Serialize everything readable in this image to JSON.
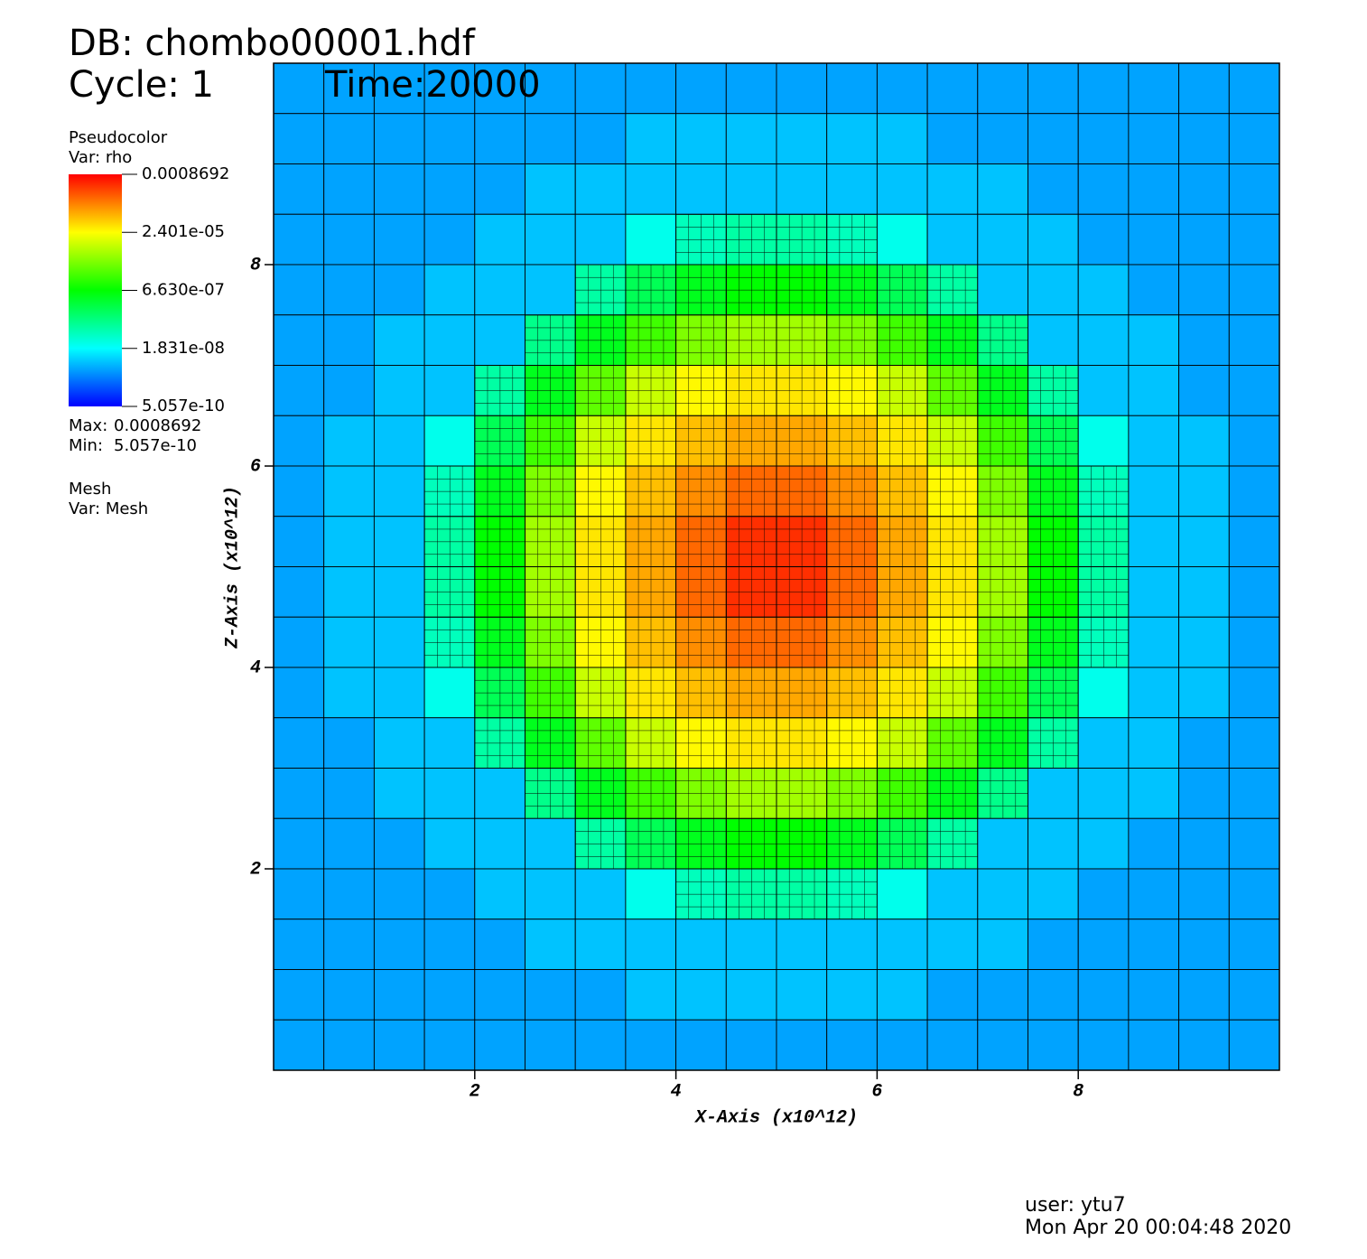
{
  "chart_data": {
    "type": "heatmap",
    "title": "DB: chombo00001.hdf",
    "cycle": "Cycle: 1",
    "time": "Time:20000",
    "plot_name": "Pseudocolor",
    "variable": "Var: rho",
    "colorbar": {
      "zlim": [
        5.057e-10,
        0.0008692
      ],
      "log": true,
      "colors": [
        "#0000ff",
        "#00ffff",
        "#00ff00",
        "#ffff00",
        "#ff0000"
      ],
      "ticks": [
        5.057e-10,
        {
          "value": 1.831e-08,
          "label": "1.831e-08"
        },
        {
          "value": 6.63e-07,
          "label": "6.630e-07"
        },
        {
          "value": 2.401e-05,
          "label": "2.401e-05"
        },
        0.0008692
      ]
    },
    "max_label": "Max:",
    "max": 0.0008692,
    "min_label": "Min:",
    "min": 5.057e-10,
    "mesh_name": "Mesh",
    "mesh_variable": "Var: Mesh",
    "x_label": "X-Axis (x10^12)",
    "y_label": "Z-Axis (x10^12)",
    "xlim": [
      0,
      10
    ],
    "ylim": [
      0,
      10
    ],
    "xticks": [
      2,
      4,
      6,
      8
    ],
    "yticks": [
      2,
      4,
      6,
      8
    ],
    "x": [
      0.25,
      0.75,
      1.25,
      1.75,
      2.25,
      2.75,
      3.25,
      3.75,
      4.25,
      4.75,
      5.25,
      5.75,
      6.25,
      6.75,
      7.25,
      7.75,
      8.25,
      8.75,
      9.25,
      9.75
    ],
    "y": [
      9.75,
      9.25,
      8.75,
      8.25,
      7.75,
      7.25,
      6.75,
      6.25,
      5.75,
      5.25,
      4.75,
      4.25,
      3.75,
      3.25,
      2.75,
      2.25,
      1.75,
      1.25,
      0.75,
      0.25
    ],
    "values": [
      [
        5e-09,
        5e-09,
        5e-09,
        5e-09,
        5e-09,
        5e-09,
        5e-09,
        5e-09,
        5e-09,
        5e-09,
        5e-09,
        5e-09,
        5e-09,
        5e-09,
        5e-09,
        5e-09,
        5e-09,
        5e-09,
        5e-09,
        5e-09
      ],
      [
        5e-09,
        5e-09,
        5e-09,
        5e-09,
        5e-09,
        5e-09,
        5e-09,
        7.9e-09,
        7.9e-09,
        7.9e-09,
        7.9e-09,
        7.9e-09,
        7.9e-09,
        5e-09,
        5e-09,
        5e-09,
        5e-09,
        5e-09,
        5e-09,
        5e-09
      ],
      [
        5e-09,
        5e-09,
        5e-09,
        5e-09,
        5e-09,
        7.9e-09,
        7.9e-09,
        7.9e-09,
        7.9e-09,
        7.9e-09,
        7.9e-09,
        7.9e-09,
        7.9e-09,
        7.9e-09,
        7.9e-09,
        5e-09,
        5e-09,
        5e-09,
        5e-09,
        5e-09
      ],
      [
        5e-09,
        5e-09,
        5e-09,
        5e-09,
        7.9e-09,
        7.9e-09,
        7.9e-09,
        2.4e-08,
        4.7e-08,
        6.6e-08,
        6.6e-08,
        4.7e-08,
        2.4e-08,
        7.9e-09,
        7.9e-09,
        7.9e-09,
        5e-09,
        5e-09,
        5e-09,
        5e-09
      ],
      [
        5e-09,
        5e-09,
        5e-09,
        7.9e-09,
        7.9e-09,
        7.9e-09,
        6.6e-08,
        2e-07,
        4.4e-07,
        6.6e-07,
        6.6e-07,
        4.4e-07,
        2e-07,
        6.6e-08,
        7.9e-09,
        7.9e-09,
        7.9e-09,
        5e-09,
        5e-09,
        5e-09
      ],
      [
        5e-09,
        5e-09,
        7.9e-09,
        7.9e-09,
        7.9e-09,
        9.5e-08,
        4.4e-07,
        1.6e-06,
        3.9e-06,
        6.5e-06,
        6.5e-06,
        3.9e-06,
        1.6e-06,
        4.4e-07,
        9.5e-08,
        7.9e-09,
        7.9e-09,
        7.9e-09,
        5e-09,
        5e-09
      ],
      [
        5e-09,
        5e-09,
        7.9e-09,
        7.9e-09,
        6.6e-08,
        4.4e-07,
        2.5e-06,
        1.1e-05,
        2.6e-05,
        3.4e-05,
        3.4e-05,
        2.6e-05,
        1.1e-05,
        2.5e-06,
        4.4e-07,
        6.6e-08,
        7.9e-09,
        7.9e-09,
        5e-09,
        5e-09
      ],
      [
        5e-09,
        7.9e-09,
        7.9e-09,
        2.4e-08,
        2e-07,
        1.6e-06,
        1.1e-05,
        3.4e-05,
        5.9e-05,
        8.3e-05,
        8.3e-05,
        5.9e-05,
        3.4e-05,
        1.1e-05,
        1.6e-06,
        2e-07,
        2.4e-08,
        7.9e-09,
        7.9e-09,
        5e-09
      ],
      [
        5e-09,
        7.9e-09,
        7.9e-09,
        4.7e-08,
        4.4e-07,
        3.9e-06,
        2.6e-05,
        5.9e-05,
        0.00012,
        0.0002,
        0.0002,
        0.00012,
        5.9e-05,
        2.6e-05,
        3.9e-06,
        4.4e-07,
        4.7e-08,
        7.9e-09,
        7.9e-09,
        5e-09
      ],
      [
        5e-09,
        7.9e-09,
        7.9e-09,
        6.6e-08,
        6.6e-07,
        6.5e-06,
        3.4e-05,
        8.3e-05,
        0.0002,
        0.00045,
        0.00045,
        0.0002,
        8.3e-05,
        3.4e-05,
        6.5e-06,
        6.6e-07,
        6.6e-08,
        7.9e-09,
        7.9e-09,
        5e-09
      ],
      [
        5e-09,
        7.9e-09,
        7.9e-09,
        6.6e-08,
        6.6e-07,
        6.5e-06,
        3.4e-05,
        8.3e-05,
        0.0002,
        0.00045,
        0.00045,
        0.0002,
        8.3e-05,
        3.4e-05,
        6.5e-06,
        6.6e-07,
        6.6e-08,
        7.9e-09,
        7.9e-09,
        5e-09
      ],
      [
        5e-09,
        7.9e-09,
        7.9e-09,
        4.7e-08,
        4.4e-07,
        3.9e-06,
        2.6e-05,
        5.9e-05,
        0.00012,
        0.0002,
        0.0002,
        0.00012,
        5.9e-05,
        2.6e-05,
        3.9e-06,
        4.4e-07,
        4.7e-08,
        7.9e-09,
        7.9e-09,
        5e-09
      ],
      [
        5e-09,
        7.9e-09,
        7.9e-09,
        2.4e-08,
        2e-07,
        1.6e-06,
        1.1e-05,
        3.4e-05,
        5.9e-05,
        8.3e-05,
        8.3e-05,
        5.9e-05,
        3.4e-05,
        1.1e-05,
        1.6e-06,
        2e-07,
        2.4e-08,
        7.9e-09,
        7.9e-09,
        5e-09
      ],
      [
        5e-09,
        5e-09,
        7.9e-09,
        7.9e-09,
        6.6e-08,
        4.4e-07,
        2.5e-06,
        1.1e-05,
        2.6e-05,
        3.4e-05,
        3.4e-05,
        2.6e-05,
        1.1e-05,
        2.5e-06,
        4.4e-07,
        6.6e-08,
        7.9e-09,
        7.9e-09,
        5e-09,
        5e-09
      ],
      [
        5e-09,
        5e-09,
        7.9e-09,
        7.9e-09,
        7.9e-09,
        9.5e-08,
        4.4e-07,
        1.6e-06,
        3.9e-06,
        6.5e-06,
        6.5e-06,
        3.9e-06,
        1.6e-06,
        4.4e-07,
        9.5e-08,
        7.9e-09,
        7.9e-09,
        7.9e-09,
        5e-09,
        5e-09
      ],
      [
        5e-09,
        5e-09,
        5e-09,
        7.9e-09,
        7.9e-09,
        7.9e-09,
        6.6e-08,
        2e-07,
        4.4e-07,
        6.6e-07,
        6.6e-07,
        4.4e-07,
        2e-07,
        6.6e-08,
        7.9e-09,
        7.9e-09,
        7.9e-09,
        5e-09,
        5e-09,
        5e-09
      ],
      [
        5e-09,
        5e-09,
        5e-09,
        5e-09,
        7.9e-09,
        7.9e-09,
        7.9e-09,
        2.4e-08,
        4.7e-08,
        6.6e-08,
        6.6e-08,
        4.7e-08,
        2.4e-08,
        7.9e-09,
        7.9e-09,
        7.9e-09,
        5e-09,
        5e-09,
        5e-09,
        5e-09
      ],
      [
        5e-09,
        5e-09,
        5e-09,
        5e-09,
        5e-09,
        7.9e-09,
        7.9e-09,
        7.9e-09,
        7.9e-09,
        7.9e-09,
        7.9e-09,
        7.9e-09,
        7.9e-09,
        7.9e-09,
        7.9e-09,
        5e-09,
        5e-09,
        5e-09,
        5e-09,
        5e-09
      ],
      [
        5e-09,
        5e-09,
        5e-09,
        5e-09,
        5e-09,
        5e-09,
        5e-09,
        7.9e-09,
        7.9e-09,
        7.9e-09,
        7.9e-09,
        7.9e-09,
        7.9e-09,
        5e-09,
        5e-09,
        5e-09,
        5e-09,
        5e-09,
        5e-09,
        5e-09
      ],
      [
        5e-09,
        5e-09,
        5e-09,
        5e-09,
        5e-09,
        5e-09,
        5e-09,
        5e-09,
        5e-09,
        5e-09,
        5e-09,
        5e-09,
        5e-09,
        5e-09,
        5e-09,
        5e-09,
        5e-09,
        5e-09,
        5e-09,
        5e-09
      ]
    ],
    "user": "user: ytu7",
    "date": "Mon Apr 20 00:04:48 2020"
  }
}
